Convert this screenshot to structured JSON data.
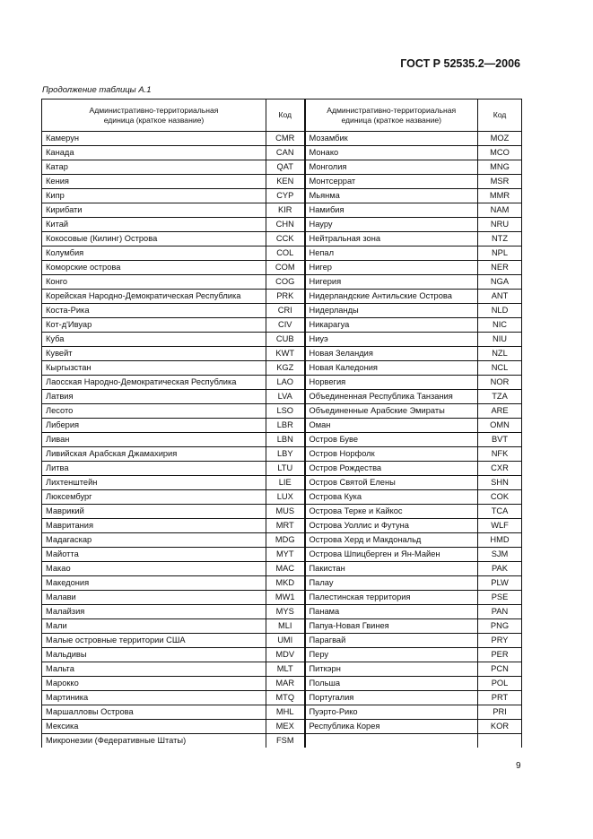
{
  "header": {
    "doc_code": "ГОСТ Р 52535.2—2006",
    "caption": "Продолжение таблицы А.1"
  },
  "table": {
    "headers": [
      "Административно-территориальная единица (краткое название)",
      "Код",
      "Административно-территориальная единица (краткое название)",
      "Код"
    ],
    "rows": [
      [
        "Камерун",
        "CMR",
        "Мозамбик",
        "MOZ"
      ],
      [
        "Канада",
        "CAN",
        "Монако",
        "MCO"
      ],
      [
        "Катар",
        "QAT",
        "Монголия",
        "MNG"
      ],
      [
        "Кения",
        "KEN",
        "Монтсеррат",
        "MSR"
      ],
      [
        "Кипр",
        "CYP",
        "Мьянма",
        "MMR"
      ],
      [
        "Кирибати",
        "KIR",
        "Намибия",
        "NAM"
      ],
      [
        "Китай",
        "CHN",
        "Науру",
        "NRU"
      ],
      [
        "Кокосовые (Килинг) Острова",
        "CCK",
        "Нейтральная зона",
        "NTZ"
      ],
      [
        "Колумбия",
        "COL",
        "Непал",
        "NPL"
      ],
      [
        "Коморские острова",
        "COM",
        "Нигер",
        "NER"
      ],
      [
        "Конго",
        "COG",
        "Нигерия",
        "NGA"
      ],
      [
        "Корейская Народно-Демократическая Республика",
        "PRK",
        "Нидерландские Антильские Острова",
        "ANT"
      ],
      [
        "Коста-Рика",
        "CRI",
        "Нидерланды",
        "NLD"
      ],
      [
        "Кот-д'Ивуар",
        "CIV",
        "Никарагуа",
        "NIC"
      ],
      [
        "Куба",
        "CUB",
        "Ниуэ",
        "NIU"
      ],
      [
        "Кувейт",
        "KWT",
        "Новая Зеландия",
        "NZL"
      ],
      [
        "Кыргызстан",
        "KGZ",
        "Новая Каледония",
        "NCL"
      ],
      [
        "Лаосская Народно-Демократическая Республика",
        "LAO",
        "Норвегия",
        "NOR"
      ],
      [
        "Латвия",
        "LVA",
        "Объединенная Республика Танзания",
        "TZA"
      ],
      [
        "Лесото",
        "LSO",
        "Объединенные Арабские Эмираты",
        "ARE"
      ],
      [
        "Либерия",
        "LBR",
        "Оман",
        "OMN"
      ],
      [
        "Ливан",
        "LBN",
        "Остров Буве",
        "BVT"
      ],
      [
        "Ливийская Арабская Джамахирия",
        "LBY",
        "Остров Норфолк",
        "NFK"
      ],
      [
        "Литва",
        "LTU",
        "Остров Рождества",
        "CXR"
      ],
      [
        "Лихтенштейн",
        "LIE",
        "Остров Святой Елены",
        "SHN"
      ],
      [
        "Люксембург",
        "LUX",
        "Острова Кука",
        "COK"
      ],
      [
        "Маврикий",
        "MUS",
        "Острова Терке и Кайкос",
        "TCA"
      ],
      [
        "Мавритания",
        "MRT",
        "Острова Уоллис и Футуна",
        "WLF"
      ],
      [
        "Мадагаскар",
        "MDG",
        "Острова Херд и Макдональд",
        "HMD"
      ],
      [
        "Майотта",
        "MYT",
        "Острова Шпицберген и Ян-Майен",
        "SJM"
      ],
      [
        "Макао",
        "MAC",
        "Пакистан",
        "PAK"
      ],
      [
        "Македония",
        "MKD",
        "Палау",
        "PLW"
      ],
      [
        "Малави",
        "MW1",
        "Палестинская территория",
        "PSE"
      ],
      [
        "Малайзия",
        "MYS",
        "Панама",
        "PAN"
      ],
      [
        "Мали",
        "MLI",
        "Папуа-Новая Гвинея",
        "PNG"
      ],
      [
        "Малые островные территории США",
        "UMI",
        "Парагвай",
        "PRY"
      ],
      [
        "Мальдивы",
        "MDV",
        "Перу",
        "PER"
      ],
      [
        "Мальта",
        "MLT",
        "Питкэрн",
        "PCN"
      ],
      [
        "Марокко",
        "MAR",
        "Польша",
        "POL"
      ],
      [
        "Мартиника",
        "MTQ",
        "Португалия",
        "PRT"
      ],
      [
        "Маршалловы Острова",
        "MHL",
        "Пуэрто-Рико",
        "PRI"
      ],
      [
        "Мексика",
        "MEX",
        "Республика Корея",
        "KOR"
      ],
      [
        "Микронезии (Федеративные Штаты)",
        "FSM",
        "",
        ""
      ]
    ]
  },
  "footer": {
    "page_number": "9"
  }
}
